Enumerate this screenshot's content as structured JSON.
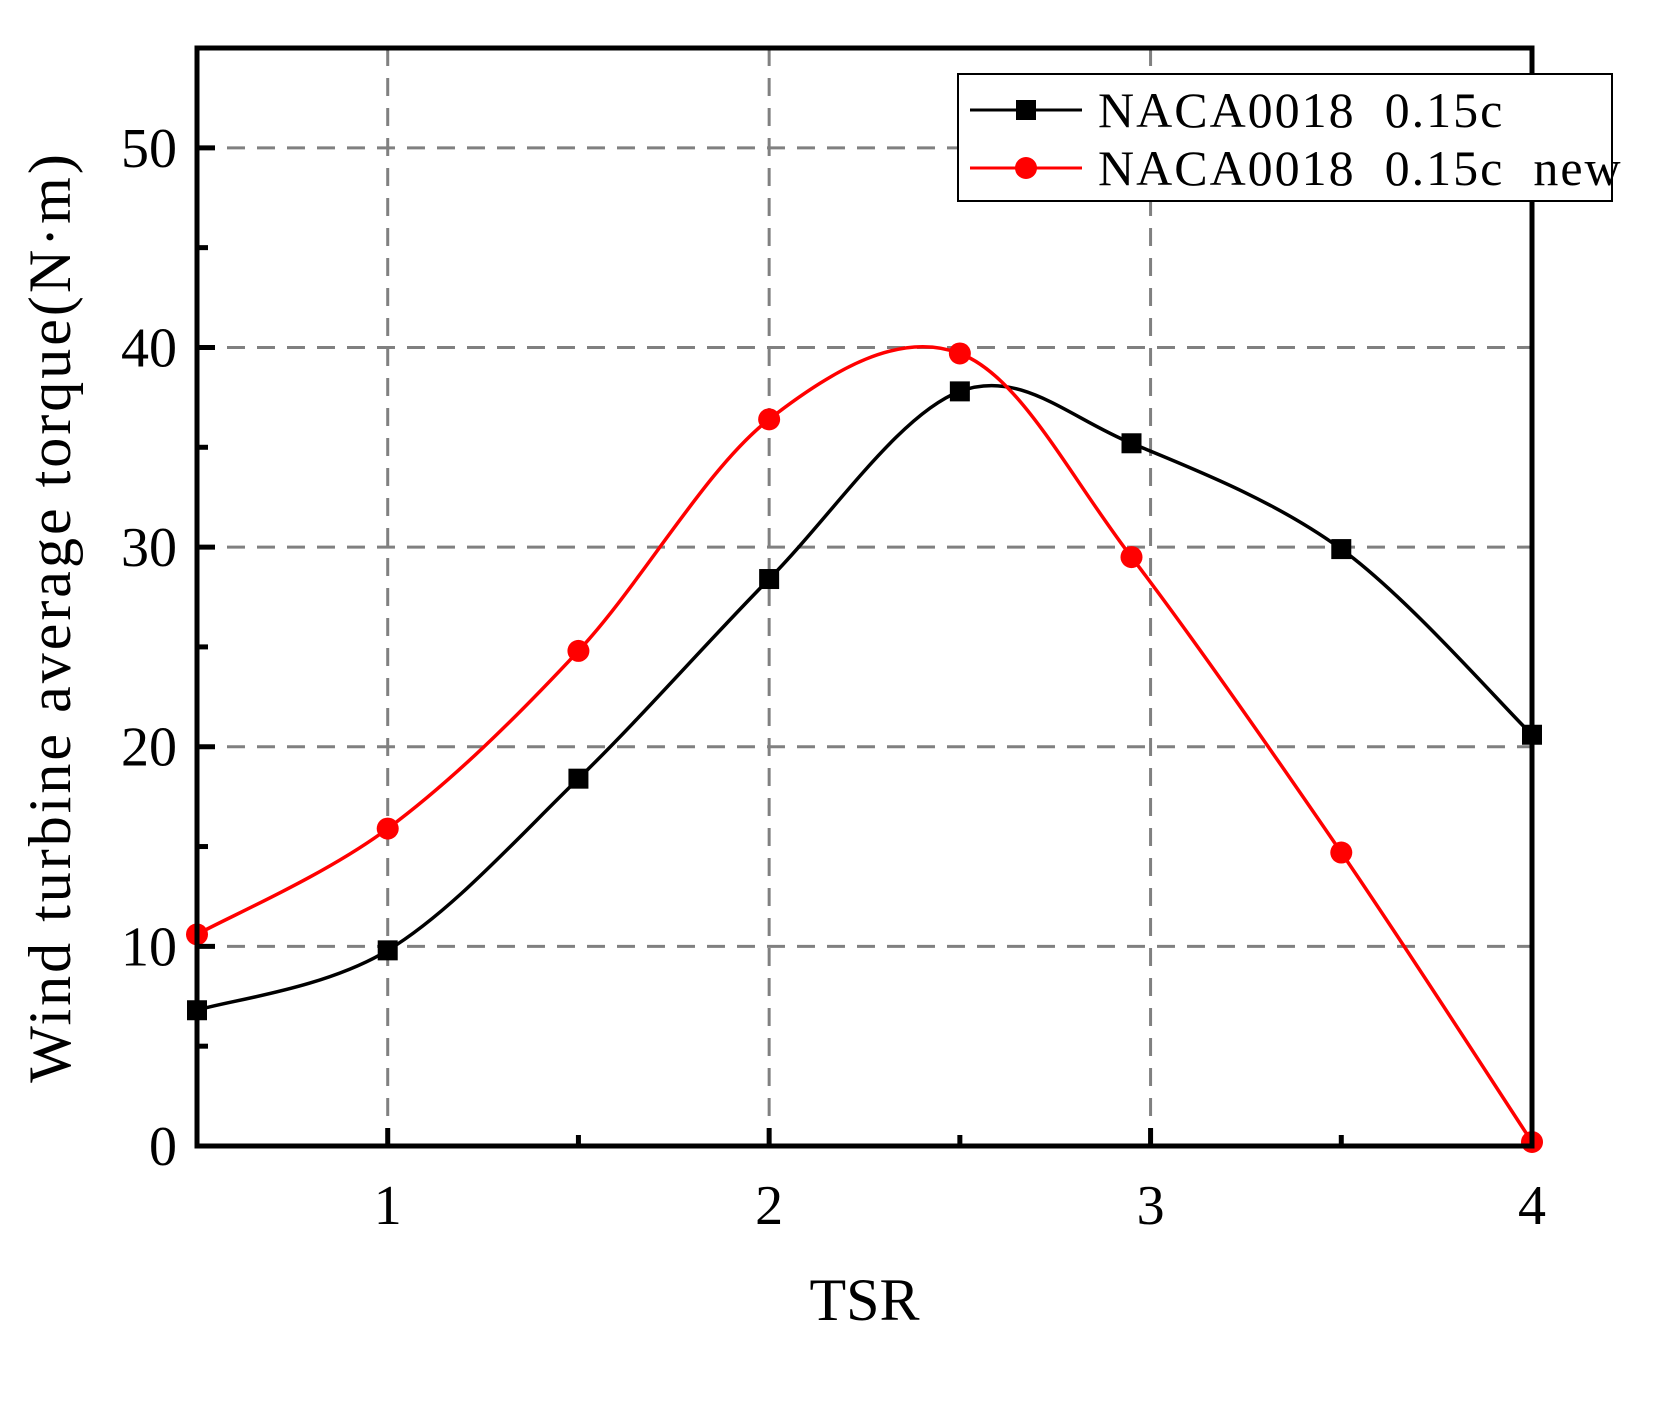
{
  "chart_data": {
    "type": "line",
    "title": "",
    "xlabel": "TSR",
    "ylabel": "Wind turbine average torque(N·m)",
    "xlim": [
      0.5,
      4
    ],
    "ylim": [
      0,
      55
    ],
    "x_ticks": [
      1,
      2,
      3,
      4
    ],
    "y_ticks": [
      0,
      10,
      20,
      30,
      40,
      50
    ],
    "grid": true,
    "legend_position": "top-right",
    "series": [
      {
        "name": "NACA0018  0.15c",
        "color": "#000000",
        "marker": "square",
        "x": [
          0.5,
          1.0,
          1.5,
          2.0,
          2.5,
          2.95,
          3.5,
          4.0
        ],
        "values": [
          6.8,
          9.8,
          18.4,
          28.4,
          37.8,
          35.2,
          29.9,
          20.6
        ]
      },
      {
        "name": "NACA0018  0.15c  new",
        "color": "#ff0000",
        "marker": "circle",
        "x": [
          0.5,
          1.0,
          1.5,
          2.0,
          2.5,
          2.95,
          3.5,
          4.0
        ],
        "values": [
          10.6,
          15.9,
          24.8,
          36.4,
          39.7,
          29.5,
          14.7,
          0.2
        ]
      }
    ]
  }
}
